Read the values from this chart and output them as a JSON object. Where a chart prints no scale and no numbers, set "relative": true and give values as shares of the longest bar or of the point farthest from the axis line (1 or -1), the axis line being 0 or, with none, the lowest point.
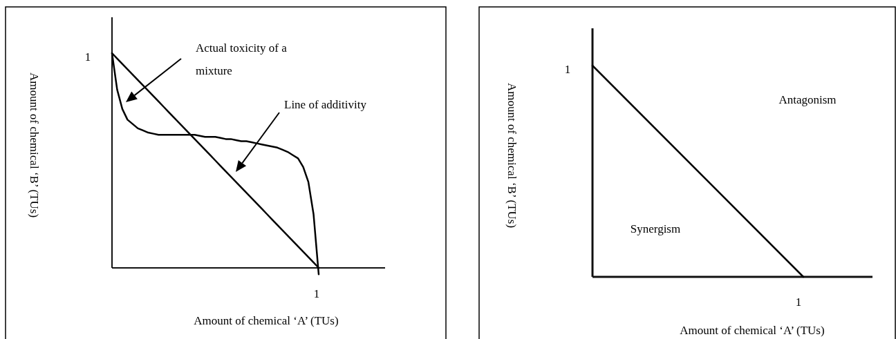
{
  "chart_data": [
    {
      "type": "line",
      "relative": true,
      "xlabel": "Amount of chemical ‘A’ (TUs)",
      "ylabel": "Amount of chemical ‘B’ (TUs)",
      "marker": "none",
      "line_style": "solid",
      "categories": [
        null,
        null,
        null,
        null,
        null,
        null,
        null,
        null,
        null,
        null,
        null,
        null,
        null,
        null,
        null,
        null,
        null,
        null,
        null,
        null,
        null,
        null,
        null,
        null,
        null,
        null,
        null,
        null,
        null,
        null,
        null,
        null,
        null,
        null,
        null,
        null,
        null,
        null,
        null,
        null,
        null
      ],
      "series": [
        {
          "color": "#000000",
          "values": [
            1,
            0.975,
            0.95,
            0.925,
            0.9,
            0.875,
            0.85,
            0.825,
            0.8,
            0.775,
            0.75,
            0.725,
            0.7,
            0.675,
            0.65,
            0.625,
            0.6,
            0.575,
            0.55,
            0.525,
            0.5,
            0.475,
            0.45,
            0.425,
            0.4,
            0.375,
            0.35,
            0.325,
            0.3,
            0.275,
            0.25,
            0.225,
            0.2,
            0.175,
            0.15,
            0.125,
            0.1,
            0.075,
            0.05,
            0.025,
            0
          ]
        },
        {
          "color": "#000000",
          "values": [
            1,
            0.83,
            0.74,
            0.69,
            0.67,
            0.65,
            0.64,
            0.63,
            0.625,
            0.62,
            0.62,
            0.62,
            0.62,
            0.62,
            0.62,
            0.62,
            0.62,
            0.615,
            0.61,
            0.61,
            0.61,
            0.605,
            0.6,
            0.6,
            0.595,
            0.59,
            0.59,
            0.585,
            0.58,
            0.575,
            0.57,
            0.565,
            0.56,
            0.55,
            0.54,
            0.525,
            0.51,
            0.47,
            0.4,
            0.25,
            -0.03
          ]
        }
      ],
      "annotations": [
        "Actual toxicity of a mixture",
        "Line of additivity",
        "1",
        "1"
      ]
    },
    {
      "type": "line",
      "relative": true,
      "xlabel": "Amount of chemical ‘A’ (TUs)",
      "ylabel": "Amount of chemical ‘B’ (TUs)",
      "marker": "none",
      "line_style": "solid",
      "categories": [
        null,
        null
      ],
      "series": [
        {
          "color": "#000000",
          "values": [
            1,
            0
          ]
        }
      ],
      "annotations": [
        "Antagonism",
        "Synergism",
        "1",
        "1"
      ]
    }
  ]
}
